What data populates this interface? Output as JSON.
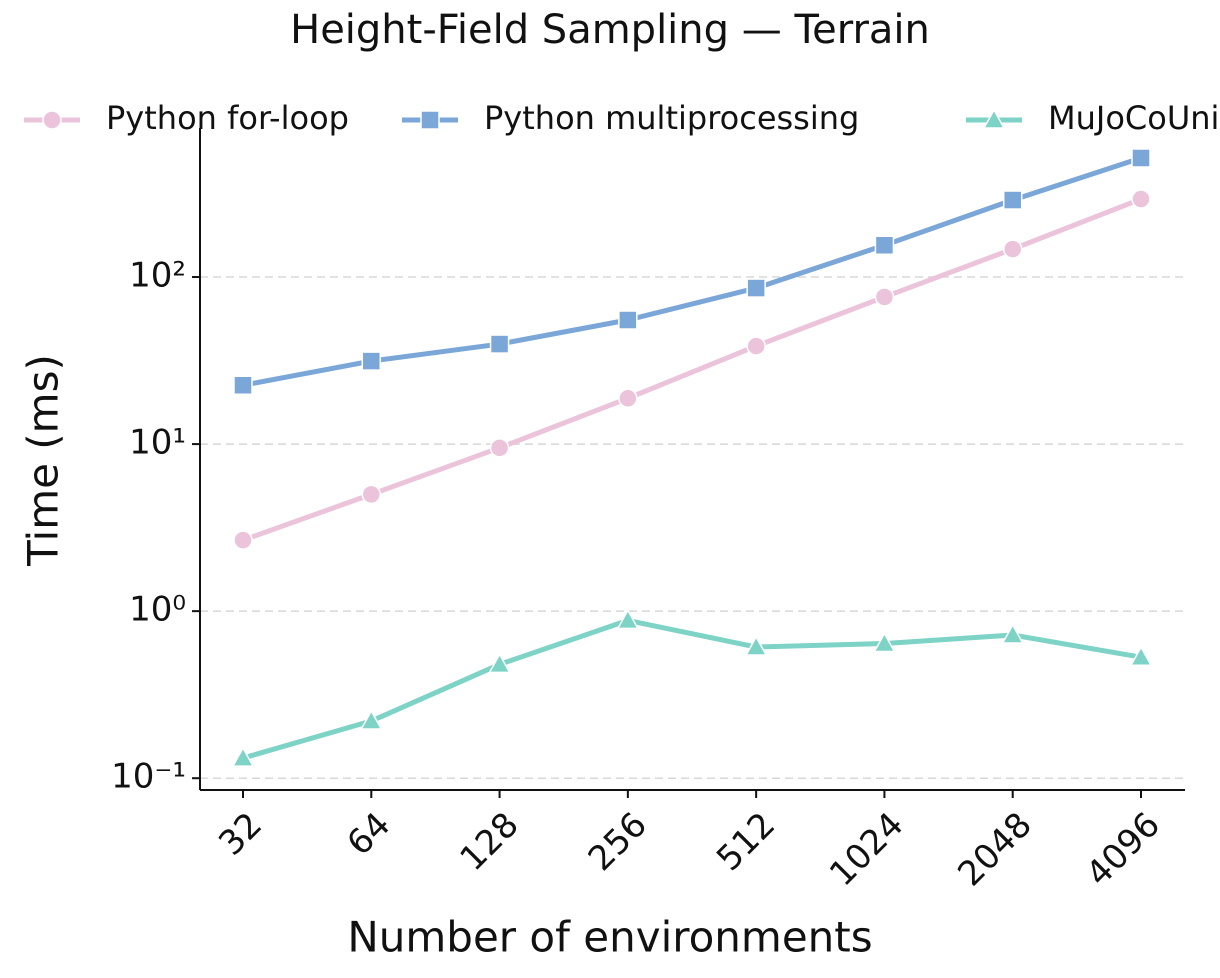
{
  "chart_data": {
    "type": "line",
    "title": "Height-Field Sampling — Terrain",
    "x_label": "Number of environments",
    "y_label": "Time (ms)",
    "categories": [
      "32",
      "64",
      "128",
      "256",
      "512",
      "1024",
      "2048",
      "4096"
    ],
    "series": [
      {
        "name": "Python for-loop",
        "color": "#ebc3db",
        "marker": "circle",
        "values": [
          2.66,
          5.0,
          9.5,
          18.8,
          38.6,
          76,
          147,
          293
        ]
      },
      {
        "name": "Python multiprocessing",
        "color": "#7aa6d8",
        "marker": "square",
        "values": [
          22.5,
          31.4,
          39.7,
          55.3,
          85.9,
          155,
          289,
          516
        ]
      },
      {
        "name": "MuJoCoUni",
        "color": "#7dd3c6",
        "marker": "triangle",
        "values": [
          0.132,
          0.22,
          0.48,
          0.88,
          0.61,
          0.64,
          0.72,
          0.53
        ]
      }
    ],
    "yscale": "log",
    "ylim": [
      0.085,
      780
    ],
    "yticks": [
      {
        "value": 0.1,
        "label": "10⁻¹"
      },
      {
        "value": 1,
        "label": "10⁰"
      },
      {
        "value": 10,
        "label": "10¹"
      },
      {
        "value": 100,
        "label": "10²"
      }
    ],
    "grid": true,
    "legend": "top"
  }
}
